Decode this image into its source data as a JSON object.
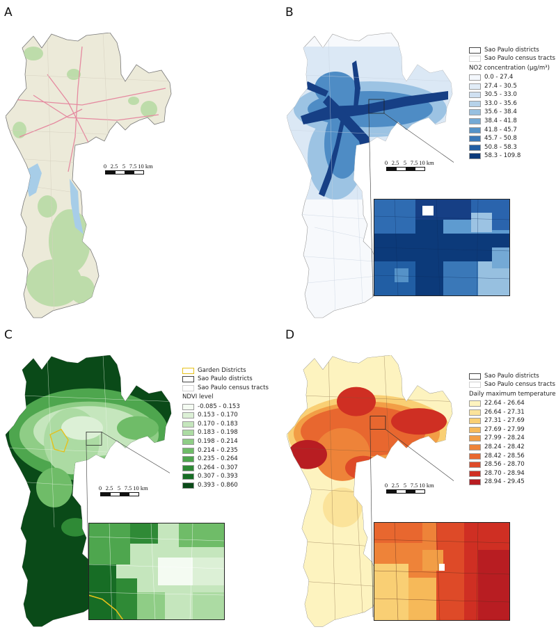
{
  "panels": {
    "a": {
      "label": "A"
    },
    "b": {
      "label": "B"
    },
    "c": {
      "label": "C"
    },
    "d": {
      "label": "D"
    }
  },
  "scalebar": [
    "0",
    "2.5",
    "5",
    "7.5",
    "10 km"
  ],
  "legend_b": {
    "districts": "Sao Paulo districts",
    "tracts": "Sao Paulo census tracts",
    "title": "NO2 concentration (μg/m³)",
    "classes": [
      {
        "label": "0.0 - 27.4",
        "color": "#f4f8fd"
      },
      {
        "label": "27.4 - 30.5",
        "color": "#e1ecf7"
      },
      {
        "label": "30.5 - 33.0",
        "color": "#cfe0f1"
      },
      {
        "label": "33.0 - 35.6",
        "color": "#b6d2e9"
      },
      {
        "label": "35.6 - 38.4",
        "color": "#97c0e0"
      },
      {
        "label": "38.4 - 41.8",
        "color": "#74a9d5"
      },
      {
        "label": "41.8 - 45.7",
        "color": "#5592c8"
      },
      {
        "label": "45.7 - 50.8",
        "color": "#3a78b8"
      },
      {
        "label": "50.8 - 58.3",
        "color": "#215ea4"
      },
      {
        "label": "58.3 - 109.8",
        "color": "#0c3a7a"
      }
    ]
  },
  "legend_c": {
    "garden": "Garden Districts",
    "districts": "Sao Paulo districts",
    "tracts": "Sao Paulo census tracts",
    "title": "NDVI level",
    "classes": [
      {
        "label": "-0.085 - 0.153",
        "color": "#f4fbf2"
      },
      {
        "label": "0.153 - 0.170",
        "color": "#dcf0d6"
      },
      {
        "label": "0.170 - 0.183",
        "color": "#c5e6bd"
      },
      {
        "label": "0.183 - 0.198",
        "color": "#acdba3"
      },
      {
        "label": "0.198 - 0.214",
        "color": "#8fcd86"
      },
      {
        "label": "0.214 - 0.235",
        "color": "#6fbc68"
      },
      {
        "label": "0.235 - 0.264",
        "color": "#4ea64e"
      },
      {
        "label": "0.264 - 0.307",
        "color": "#2f8a36"
      },
      {
        "label": "0.307 - 0.393",
        "color": "#176d25"
      },
      {
        "label": "0.393 - 0.860",
        "color": "#0a4a18"
      }
    ]
  },
  "legend_d": {
    "districts": "Sao Paulo districts",
    "tracts": "Sao Paulo census tracts",
    "title": "Daily maximum temperature (°C)",
    "classes": [
      {
        "label": "22.64 - 26.64",
        "color": "#fdf3bf"
      },
      {
        "label": "26.64 - 27.31",
        "color": "#fbe39a"
      },
      {
        "label": "27.31 - 27.69",
        "color": "#f9cf74"
      },
      {
        "label": "27.69 - 27.99",
        "color": "#f6b959"
      },
      {
        "label": "27.99 - 28.24",
        "color": "#f29e46"
      },
      {
        "label": "28.24 - 28.42",
        "color": "#ee8339"
      },
      {
        "label": "28.42 - 28.56",
        "color": "#e8672f"
      },
      {
        "label": "28.56 - 28.70",
        "color": "#de4a28"
      },
      {
        "label": "28.70 - 28.94",
        "color": "#cf2f23"
      },
      {
        "label": "28.94 - 29.45",
        "color": "#b81d22"
      }
    ]
  }
}
